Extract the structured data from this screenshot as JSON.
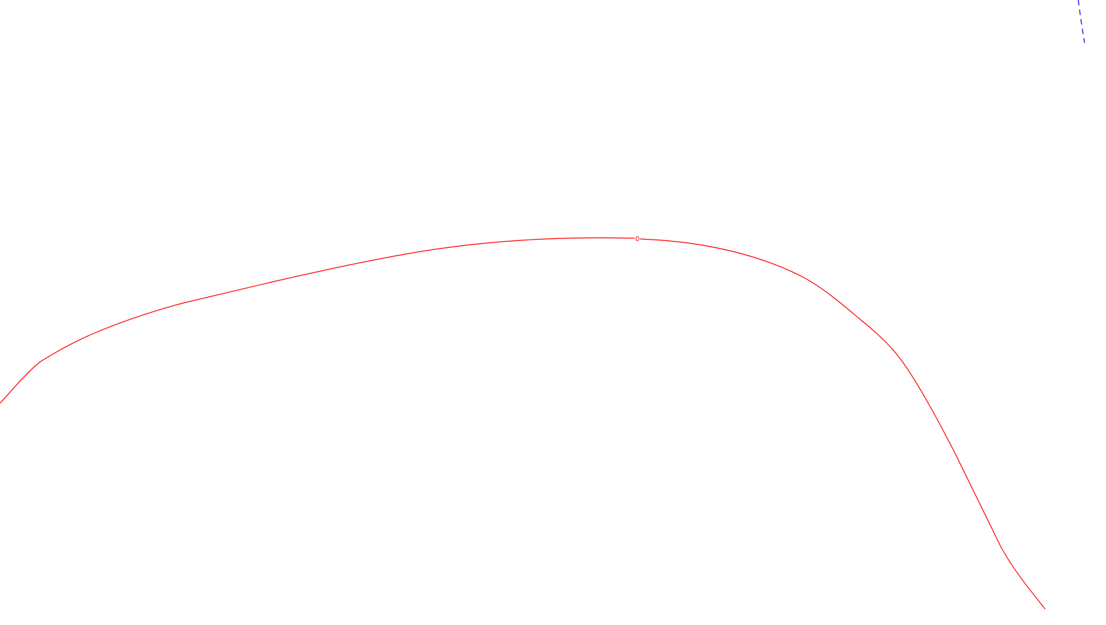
{
  "map": {
    "background_color": "#ffffff",
    "contours": [
      {
        "name": "contour-line-0",
        "label": "0",
        "color": "#ff0000",
        "style": "solid"
      },
      {
        "name": "contour-line-blue-dashed",
        "label": "",
        "color": "#0000cc",
        "style": "dashed"
      }
    ]
  }
}
